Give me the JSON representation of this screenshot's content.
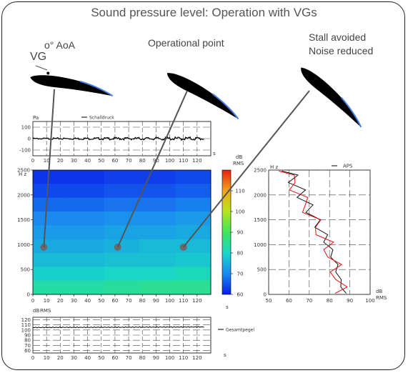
{
  "header": {
    "title": "Sound pressure level: Operation with VGs",
    "label_aoa": "o° AoA",
    "label_vg": "VG",
    "label_operational": "Operational point",
    "label_stall_1": "Stall avoided",
    "label_stall_2": "Noise reduced"
  },
  "colors": {
    "airfoil": "#000000",
    "airfoil_edge": "#4a7fe0",
    "pointer": "#555555",
    "aps_red": "#e11010",
    "aps_black": "#111111"
  },
  "chart_data": [
    {
      "type": "line",
      "ylabel": "Pa",
      "legend": "Schalldruck",
      "xlabel": "s",
      "xlim": [
        0,
        130
      ],
      "ylim": [
        -150,
        150
      ],
      "xticks": [
        0,
        10,
        20,
        30,
        40,
        50,
        60,
        70,
        80,
        90,
        100,
        110,
        120
      ],
      "yticks": [
        -100,
        0,
        100
      ],
      "x_tick_labels": [
        "0",
        "10",
        "20",
        "30",
        "40",
        "50",
        "60",
        "70",
        "80",
        "90",
        "100",
        "110",
        "120"
      ],
      "y_tick_labels": [
        "-100",
        "0",
        "100"
      ],
      "series": [
        {
          "name": "Schalldruck",
          "values": {
            "x": [
              0,
              125
            ],
            "y": [
              0,
              0
            ]
          }
        }
      ]
    },
    {
      "type": "heatmap",
      "ylabel": "H z",
      "xlabel": "s",
      "xlim": [
        0,
        130
      ],
      "ylim": [
        0,
        2500
      ],
      "xticks": [
        0,
        10,
        20,
        30,
        40,
        50,
        60,
        70,
        80,
        90,
        100,
        110,
        120
      ],
      "yticks": [
        0,
        500,
        1000,
        1500,
        2000,
        2500
      ],
      "x_tick_labels": [
        "0",
        "10",
        "20",
        "30",
        "40",
        "50",
        "60",
        "70",
        "80",
        "90",
        "100",
        "110",
        "120"
      ],
      "y_tick_labels": [
        "0",
        "500",
        "1000",
        "1500",
        "2000",
        "2500"
      ],
      "colorbar": {
        "label_1": "dB",
        "label_2": "RMS",
        "range": [
          60,
          120
        ],
        "ticks": [
          60,
          70,
          80,
          90,
          100,
          110
        ],
        "tick_labels": [
          "60",
          "70",
          "80",
          "90",
          "100",
          "110"
        ]
      },
      "grid_levels_db": [
        [
          62,
          62,
          63,
          63,
          64
        ],
        [
          64,
          64,
          65,
          65,
          66
        ],
        [
          67,
          67,
          68,
          68,
          69
        ],
        [
          70,
          70,
          71,
          71,
          72
        ],
        [
          72,
          72,
          73,
          73,
          74
        ],
        [
          74,
          74,
          75,
          76,
          76
        ],
        [
          76,
          76,
          77,
          77,
          78
        ],
        [
          79,
          79,
          80,
          80,
          81
        ],
        [
          83,
          83,
          84,
          85,
          85
        ]
      ],
      "markers": [
        {
          "x": 8,
          "y": 950
        },
        {
          "x": 62,
          "y": 950
        },
        {
          "x": 110,
          "y": 950
        }
      ]
    },
    {
      "type": "line",
      "legend": "APS",
      "ylabel": "H z",
      "xlabel_1": "dB",
      "xlabel_2": "RMS",
      "xlim": [
        50,
        100
      ],
      "ylim": [
        0,
        2500
      ],
      "xticks": [
        50,
        60,
        70,
        80,
        90,
        100
      ],
      "yticks": [
        0,
        500,
        1000,
        1500,
        2000,
        2500
      ],
      "x_tick_labels": [
        "50",
        "60",
        "70",
        "80",
        "90",
        "100"
      ],
      "y_tick_labels": [
        "0",
        "500",
        "1000",
        "1500",
        "2000",
        "2500"
      ],
      "series": [
        {
          "name": "APS",
          "values": {
            "db": [
              88,
              86,
              85,
              84,
              83,
              82,
              80,
              79,
              77,
              75,
              73,
              71,
              69,
              67,
              65,
              63,
              61,
              60
            ],
            "freq": [
              20,
              150,
              300,
              450,
              600,
              750,
              900,
              1050,
              1200,
              1350,
              1500,
              1650,
              1800,
              1950,
              2100,
              2250,
              2400,
              2480
            ]
          }
        },
        {
          "name": "",
          "values": {
            "db": [
              86,
              85,
              84,
              83,
              82,
              81,
              79,
              78,
              76,
              74,
              72,
              70,
              68,
              66,
              64,
              62,
              60,
              59
            ],
            "freq": [
              20,
              150,
              300,
              450,
              600,
              750,
              900,
              1050,
              1200,
              1350,
              1500,
              1650,
              1800,
              1950,
              2100,
              2250,
              2400,
              2480
            ]
          }
        }
      ]
    },
    {
      "type": "line",
      "ylabel_1": "dB",
      "ylabel_2": "RMS",
      "legend": "Gesamtpegel",
      "xlabel": "s",
      "xlim": [
        0,
        130
      ],
      "ylim": [
        55,
        125
      ],
      "xticks": [
        0,
        10,
        20,
        30,
        40,
        50,
        60,
        70,
        80,
        90,
        100,
        110,
        120
      ],
      "yticks": [
        60,
        70,
        80,
        90,
        100,
        110,
        120
      ],
      "x_tick_labels": [
        "0",
        "10",
        "20",
        "30",
        "40",
        "50",
        "60",
        "70",
        "80",
        "90",
        "100",
        "110",
        "120"
      ],
      "y_tick_labels": [
        "60",
        "70",
        "80",
        "90",
        "100",
        "110",
        "120"
      ],
      "series": [
        {
          "name": "Gesamtpegel",
          "values": {
            "x": [
              0,
              125
            ],
            "y": [
              105,
              106
            ]
          }
        }
      ]
    }
  ]
}
